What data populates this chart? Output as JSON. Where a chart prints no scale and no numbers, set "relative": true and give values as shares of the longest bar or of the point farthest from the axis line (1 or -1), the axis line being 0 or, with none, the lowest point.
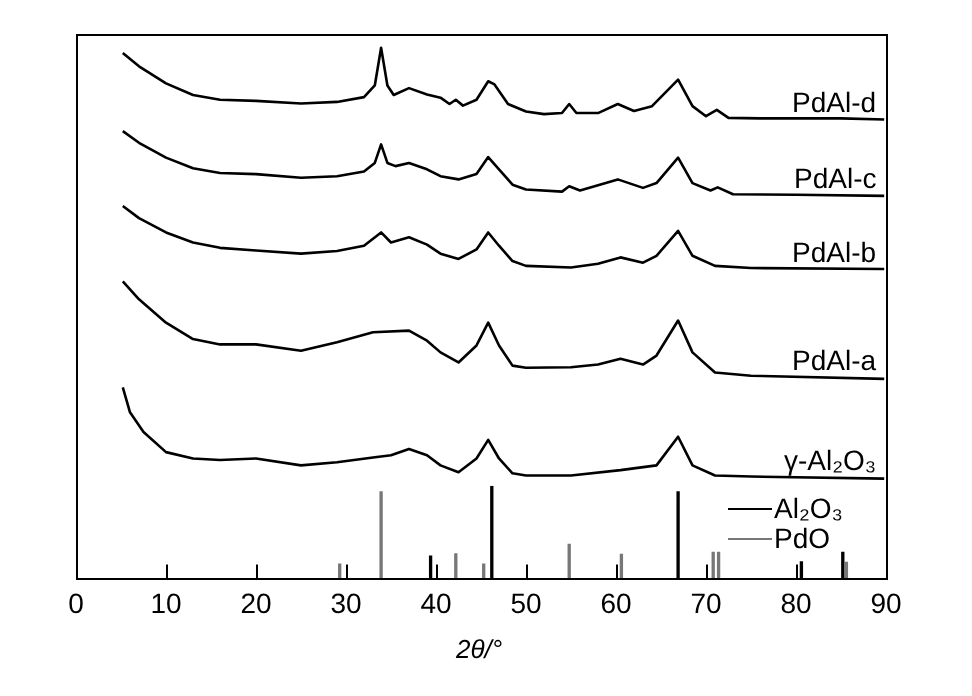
{
  "chart_data": {
    "type": "line",
    "xlabel": "2θ/°",
    "xlim": [
      0,
      90
    ],
    "xticks": [
      0,
      10,
      20,
      30,
      40,
      50,
      60,
      70,
      80,
      90
    ],
    "relative": true,
    "marker": "none",
    "legend": "bottom right",
    "series": [
      {
        "name": "PdAl-d",
        "color": "#000000",
        "x": [
          5.2,
          7,
          10,
          13,
          16,
          20,
          25,
          29,
          32,
          33.2,
          33.9,
          34.6,
          35.3,
          37,
          39,
          40.5,
          41.5,
          42.2,
          43,
          44.5,
          45.8,
          46.5,
          48,
          50,
          52,
          54,
          54.8,
          55.6,
          58,
          60.2,
          62,
          64,
          66.9,
          68.5,
          70,
          71.2,
          72.5,
          76,
          80,
          85,
          89.8
        ],
        "values": [
          0.99,
          0.965,
          0.933,
          0.911,
          0.902,
          0.9,
          0.895,
          0.898,
          0.907,
          0.929,
          1.0,
          0.929,
          0.911,
          0.924,
          0.912,
          0.906,
          0.894,
          0.902,
          0.891,
          0.902,
          0.937,
          0.931,
          0.894,
          0.88,
          0.875,
          0.877,
          0.894,
          0.877,
          0.877,
          0.894,
          0.881,
          0.89,
          0.94,
          0.89,
          0.871,
          0.883,
          0.868,
          0.867,
          0.867,
          0.867,
          0.865
        ]
      },
      {
        "name": "PdAl-c",
        "color": "#000000",
        "x": [
          5.2,
          7,
          10,
          13,
          16,
          20,
          25,
          29,
          32,
          33.2,
          33.9,
          34.6,
          35.5,
          37,
          39,
          40.5,
          42.5,
          44.5,
          45.8,
          47,
          48.5,
          50,
          54,
          54.8,
          56,
          60.2,
          63,
          64.5,
          66.9,
          68.5,
          70.5,
          71.3,
          73,
          80,
          89.8
        ],
        "values": [
          0.843,
          0.821,
          0.793,
          0.773,
          0.764,
          0.762,
          0.755,
          0.758,
          0.767,
          0.783,
          0.818,
          0.783,
          0.777,
          0.783,
          0.771,
          0.758,
          0.752,
          0.762,
          0.794,
          0.771,
          0.742,
          0.733,
          0.729,
          0.739,
          0.731,
          0.752,
          0.736,
          0.745,
          0.793,
          0.745,
          0.731,
          0.737,
          0.724,
          0.723,
          0.721
        ]
      },
      {
        "name": "PdAl-b",
        "color": "#000000",
        "x": [
          5.2,
          7,
          10,
          13,
          16,
          20,
          25,
          29,
          32,
          33.9,
          35,
          37,
          39,
          40.5,
          42.5,
          44.5,
          45.8,
          47,
          48.5,
          50,
          55,
          58,
          60.5,
          63,
          64.5,
          66.9,
          68.5,
          71,
          75,
          89.8
        ],
        "values": [
          0.702,
          0.679,
          0.652,
          0.633,
          0.623,
          0.618,
          0.612,
          0.617,
          0.627,
          0.652,
          0.633,
          0.643,
          0.629,
          0.612,
          0.602,
          0.62,
          0.652,
          0.627,
          0.598,
          0.589,
          0.586,
          0.593,
          0.605,
          0.595,
          0.608,
          0.655,
          0.608,
          0.589,
          0.585,
          0.583
        ]
      },
      {
        "name": "PdAl-a",
        "color": "#000000",
        "x": [
          5.2,
          7,
          10,
          13,
          16,
          20,
          25,
          29,
          33,
          37,
          39,
          40.5,
          42.5,
          44.5,
          45.8,
          47,
          48.5,
          50,
          55,
          58,
          60.5,
          63,
          64.5,
          66.9,
          68.5,
          71,
          75,
          89.8
        ],
        "values": [
          0.56,
          0.526,
          0.482,
          0.451,
          0.441,
          0.441,
          0.429,
          0.445,
          0.464,
          0.467,
          0.448,
          0.426,
          0.407,
          0.439,
          0.482,
          0.439,
          0.401,
          0.397,
          0.398,
          0.403,
          0.414,
          0.403,
          0.42,
          0.486,
          0.426,
          0.388,
          0.382,
          0.376
        ]
      },
      {
        "name": "γ-Al₂O₃",
        "color": "#000000",
        "x": [
          5.2,
          6,
          7.5,
          10,
          13,
          16,
          20,
          25,
          29,
          33,
          35,
          37,
          39,
          40.5,
          42.5,
          44.5,
          45.8,
          47,
          48.5,
          50,
          55,
          60.5,
          64.5,
          66.9,
          68.5,
          71,
          75,
          89.8
        ],
        "values": [
          0.36,
          0.313,
          0.276,
          0.238,
          0.226,
          0.223,
          0.226,
          0.213,
          0.219,
          0.228,
          0.232,
          0.244,
          0.232,
          0.213,
          0.2,
          0.226,
          0.261,
          0.226,
          0.198,
          0.194,
          0.194,
          0.204,
          0.213,
          0.267,
          0.213,
          0.194,
          0.192,
          0.188
        ]
      },
      {
        "name": "Al₂O₃",
        "type": "bar",
        "color": "#000000",
        "x": [
          39.4,
          46.2,
          66.9,
          80.6,
          85.2
        ],
        "values": [
          0.042,
          0.173,
          0.163,
          0.031,
          0.049
        ]
      },
      {
        "name": "PdO",
        "type": "bar",
        "color": "#777777",
        "x": [
          29.3,
          33.9,
          42.2,
          45.3,
          54.8,
          60.6,
          70.8,
          71.4,
          85.6
        ],
        "values": [
          0.027,
          0.163,
          0.046,
          0.027,
          0.064,
          0.045,
          0.049,
          0.049,
          0.03
        ]
      }
    ]
  }
}
